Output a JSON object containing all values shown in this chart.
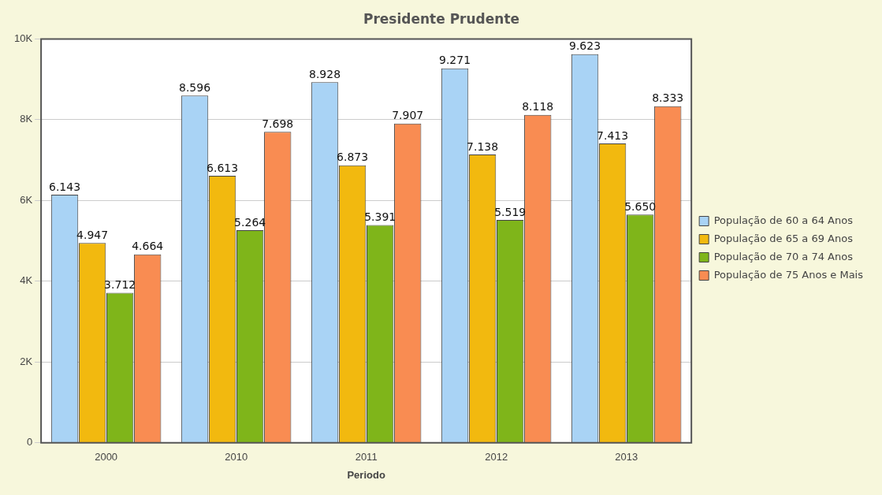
{
  "chart_data": {
    "type": "bar",
    "title": "Presidente Prudente",
    "xlabel": "Periodo",
    "categories": [
      "2000",
      "2010",
      "2011",
      "2012",
      "2013"
    ],
    "series": [
      {
        "name": "População de 60 a 64 Anos",
        "color": "#a9d3f5",
        "values": [
          6143,
          8596,
          8928,
          9271,
          9623
        ],
        "value_labels": [
          "6.143",
          "8.596",
          "8.928",
          "9.271",
          "9.623"
        ]
      },
      {
        "name": "População de 65 a 69 Anos",
        "color": "#f2b90f",
        "values": [
          4947,
          6613,
          6873,
          7138,
          7413
        ],
        "value_labels": [
          "4.947",
          "6.613",
          "6.873",
          "7.138",
          "7.413"
        ]
      },
      {
        "name": "População de 70 a 74 Anos",
        "color": "#7fb51a",
        "values": [
          3712,
          5264,
          5391,
          5519,
          5650
        ],
        "value_labels": [
          "3.712",
          "5.264",
          "5.391",
          "5.519",
          "5.650"
        ]
      },
      {
        "name": "População de 75 Anos e Mais",
        "color": "#f98c52",
        "values": [
          4664,
          7698,
          7907,
          8118,
          8333
        ],
        "value_labels": [
          "4.664",
          "7.698",
          "7.907",
          "8.118",
          "8.333"
        ]
      }
    ],
    "ylim": [
      0,
      10000
    ],
    "yticks": [
      {
        "value": 0,
        "label": "0"
      },
      {
        "value": 2000,
        "label": "2K"
      },
      {
        "value": 4000,
        "label": "4K"
      },
      {
        "value": 6000,
        "label": "6K"
      },
      {
        "value": 8000,
        "label": "8K"
      },
      {
        "value": 10000,
        "label": "10K"
      }
    ],
    "grid": "y",
    "legend": "right"
  }
}
